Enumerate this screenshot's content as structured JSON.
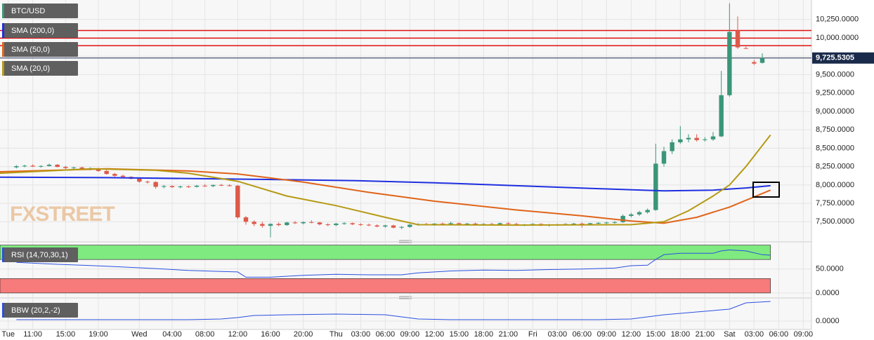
{
  "chart_data": [
    {
      "type": "candlestick",
      "symbol": "BTC/USD",
      "watermark": "FXSTREET",
      "xlim": [
        7,
        106
      ],
      "ylim": [
        7246,
        10495
      ],
      "xticks": [
        {
          "value": 8,
          "label": "Tue"
        },
        {
          "value": 11,
          "label": "11:00"
        },
        {
          "value": 15,
          "label": "15:00"
        },
        {
          "value": 19,
          "label": "19:00"
        },
        {
          "value": 24,
          "label": "Wed"
        },
        {
          "value": 28,
          "label": "04:00"
        },
        {
          "value": 32,
          "label": "08:00"
        },
        {
          "value": 36,
          "label": "12:00"
        },
        {
          "value": 40,
          "label": "16:00"
        },
        {
          "value": 44,
          "label": "20:00"
        },
        {
          "value": 48,
          "label": "Thu"
        },
        {
          "value": 51,
          "label": "03:00"
        },
        {
          "value": 54,
          "label": "06:00"
        },
        {
          "value": 57,
          "label": "09:00"
        },
        {
          "value": 60,
          "label": "12:00"
        },
        {
          "value": 63,
          "label": "15:00"
        },
        {
          "value": 66,
          "label": "18:00"
        },
        {
          "value": 69,
          "label": "21:00"
        },
        {
          "value": 72,
          "label": "Fri"
        },
        {
          "value": 75,
          "label": "03:00"
        },
        {
          "value": 78,
          "label": "06:00"
        },
        {
          "value": 81,
          "label": "09:00"
        },
        {
          "value": 84,
          "label": "12:00"
        },
        {
          "value": 87,
          "label": "15:00"
        },
        {
          "value": 90,
          "label": "18:00"
        },
        {
          "value": 93,
          "label": "21:00"
        },
        {
          "value": 96,
          "label": "Sat"
        },
        {
          "value": 99,
          "label": "03:00"
        },
        {
          "value": 102,
          "label": "06:00"
        },
        {
          "value": 105,
          "label": "09:00"
        }
      ],
      "yticks": [
        {
          "value": 7500,
          "label": "7,500.0000"
        },
        {
          "value": 7750,
          "label": "7,750.0000"
        },
        {
          "value": 8000,
          "label": "8,000.0000"
        },
        {
          "value": 8250,
          "label": "8,250.0000"
        },
        {
          "value": 8500,
          "label": "8,500.0000"
        },
        {
          "value": 8750,
          "label": "8,750.0000"
        },
        {
          "value": 9000,
          "label": "9,000.0000"
        },
        {
          "value": 9250,
          "label": "9,250.0000"
        },
        {
          "value": 9500,
          "label": "9,500.0000"
        },
        {
          "value": 9750,
          "label": "9,750.0000"
        },
        {
          "value": 10000,
          "label": "10,000.0000"
        },
        {
          "value": 10250,
          "label": "10,250.0000"
        }
      ],
      "grid": true,
      "up_color": "#3a9679",
      "down_color": "#dd5a4a",
      "x": [
        9,
        10,
        11,
        12,
        13,
        14,
        15,
        16,
        17,
        18,
        19,
        20,
        21,
        22,
        23,
        24,
        25,
        26,
        27,
        28,
        29,
        30,
        31,
        32,
        33,
        34,
        35,
        36,
        37,
        38,
        39,
        40,
        41,
        42,
        43,
        44,
        45,
        46,
        47,
        48,
        49,
        50,
        51,
        52,
        53,
        54,
        55,
        56,
        57,
        58,
        59,
        60,
        61,
        62,
        63,
        64,
        65,
        66,
        67,
        68,
        69,
        70,
        71,
        72,
        73,
        74,
        75,
        76,
        77,
        78,
        79,
        80,
        81,
        82,
        83,
        84,
        85,
        86,
        87,
        88,
        89,
        90,
        91,
        92,
        93,
        94,
        95,
        96,
        97,
        98,
        99,
        100
      ],
      "open": [
        8240,
        8255,
        8262,
        8250,
        8258,
        8275,
        8245,
        8230,
        8238,
        8222,
        8228,
        8190,
        8150,
        8125,
        8110,
        8085,
        8045,
        8040,
        7975,
        7985,
        7970,
        7980,
        7975,
        7990,
        7985,
        8000,
        7995,
        7990,
        7560,
        7500,
        7470,
        7445,
        7470,
        7455,
        7490,
        7480,
        7495,
        7490,
        7465,
        7455,
        7475,
        7480,
        7465,
        7460,
        7450,
        7435,
        7450,
        7420,
        7430,
        7460,
        7470,
        7460,
        7475,
        7462,
        7480,
        7465,
        7475,
        7460,
        7470,
        7465,
        7480,
        7470,
        7455,
        7465,
        7470,
        7450,
        7460,
        7465,
        7470,
        7475,
        7465,
        7480,
        7485,
        7490,
        7495,
        7580,
        7600,
        7630,
        7660,
        8290,
        8460,
        8580,
        8620,
        8640,
        8610,
        8620,
        8660,
        9220,
        10100,
        9860,
        9670,
        9660
      ],
      "high": [
        8270,
        8275,
        8280,
        8268,
        8290,
        8285,
        8260,
        8250,
        8250,
        8240,
        8235,
        8205,
        8165,
        8140,
        8120,
        8095,
        8060,
        8050,
        8000,
        7995,
        7990,
        7995,
        8000,
        8010,
        8005,
        8015,
        8010,
        8000,
        7580,
        7520,
        7500,
        7480,
        7490,
        7500,
        7510,
        7505,
        7520,
        7500,
        7480,
        7485,
        7495,
        7490,
        7480,
        7475,
        7465,
        7460,
        7460,
        7440,
        7470,
        7480,
        7485,
        7480,
        7490,
        7500,
        7490,
        7485,
        7490,
        7480,
        7485,
        7490,
        7495,
        7485,
        7470,
        7480,
        7480,
        7470,
        7475,
        7480,
        7485,
        7490,
        7485,
        7495,
        7500,
        7510,
        7600,
        7620,
        7650,
        7680,
        8560,
        8520,
        8620,
        8800,
        8690,
        8690,
        8650,
        8720,
        9550,
        10470,
        10290,
        9880,
        9700,
        9790
      ],
      "low": [
        8225,
        8240,
        8245,
        8235,
        8250,
        8240,
        8215,
        8210,
        8215,
        8200,
        8180,
        8140,
        8110,
        8100,
        8075,
        8030,
        8020,
        7950,
        7955,
        7960,
        7955,
        7960,
        7965,
        7975,
        7970,
        7985,
        7980,
        7540,
        7460,
        7440,
        7420,
        7290,
        7440,
        7445,
        7470,
        7465,
        7480,
        7450,
        7440,
        7440,
        7460,
        7455,
        7445,
        7440,
        7425,
        7420,
        7410,
        7400,
        7420,
        7445,
        7450,
        7445,
        7455,
        7455,
        7455,
        7450,
        7455,
        7450,
        7455,
        7455,
        7460,
        7445,
        7440,
        7450,
        7440,
        7435,
        7445,
        7450,
        7455,
        7420,
        7455,
        7465,
        7470,
        7475,
        7485,
        7560,
        7580,
        7610,
        7650,
        8250,
        8420,
        8560,
        8580,
        8590,
        8590,
        8600,
        8650,
        9200,
        9850,
        9850,
        9630,
        9650
      ],
      "close": [
        8255,
        8262,
        8250,
        8258,
        8275,
        8245,
        8230,
        8238,
        8222,
        8228,
        8190,
        8150,
        8125,
        8110,
        8085,
        8045,
        8040,
        7975,
        7985,
        7970,
        7980,
        7975,
        7990,
        7985,
        8000,
        7995,
        7990,
        7560,
        7500,
        7470,
        7445,
        7470,
        7455,
        7490,
        7480,
        7495,
        7490,
        7465,
        7455,
        7475,
        7480,
        7465,
        7460,
        7450,
        7435,
        7450,
        7420,
        7430,
        7460,
        7470,
        7460,
        7475,
        7462,
        7480,
        7465,
        7475,
        7460,
        7470,
        7465,
        7480,
        7470,
        7455,
        7465,
        7470,
        7450,
        7460,
        7465,
        7470,
        7475,
        7465,
        7480,
        7485,
        7490,
        7495,
        7580,
        7600,
        7630,
        7660,
        8290,
        8460,
        8580,
        8620,
        8640,
        8610,
        8620,
        8660,
        9220,
        10080,
        9870,
        9855,
        9650,
        9726
      ],
      "levels": [
        10100,
        9996,
        9893
      ],
      "level_color": "#e01010",
      "last_price": {
        "value": 9725.5305,
        "label": "9,725.5305"
      },
      "series": [
        {
          "name": "SMA (200,0)",
          "color": "#1f2fe0",
          "x": [
            7,
            20,
            36,
            50,
            60,
            70,
            80,
            88,
            94,
            98,
            101
          ],
          "values": [
            8105,
            8100,
            8080,
            8060,
            8030,
            7990,
            7950,
            7920,
            7930,
            7960,
            7990
          ]
        },
        {
          "name": "SMA (50,0)",
          "color": "#e0641a",
          "x": [
            7,
            20,
            30,
            36,
            44,
            52,
            60,
            70,
            78,
            84,
            88,
            92,
            96,
            101
          ],
          "values": [
            8180,
            8220,
            8190,
            8150,
            8040,
            7900,
            7780,
            7660,
            7580,
            7510,
            7480,
            7560,
            7700,
            7930
          ]
        },
        {
          "name": "SMA (20,0)",
          "color": "#b59a14",
          "x": [
            7,
            18,
            26,
            30,
            36,
            42,
            48,
            54,
            58,
            70,
            84,
            88,
            91,
            94,
            96,
            98,
            101
          ],
          "values": [
            8160,
            8220,
            8200,
            8160,
            8050,
            7850,
            7720,
            7560,
            7460,
            7455,
            7460,
            7500,
            7650,
            7850,
            8000,
            8250,
            8680
          ]
        }
      ]
    },
    {
      "type": "line",
      "ylim": [
        -6,
        101
      ],
      "yticks": [
        {
          "value": 0,
          "label": "0.0000"
        },
        {
          "value": 50,
          "label": "50.0000"
        }
      ],
      "bands": [
        {
          "from": 70,
          "to": 100,
          "color": "#7fea7f"
        },
        {
          "from": 0,
          "to": 30,
          "color": "#f77b7b"
        }
      ],
      "series": [
        {
          "name": "RSI (14,70,30,1)",
          "color": "#2a50e0",
          "x": [
            9,
            14,
            20,
            26,
            30,
            34,
            36,
            37,
            40,
            44,
            48,
            52,
            56,
            58,
            62,
            66,
            70,
            74,
            78,
            82,
            84,
            86,
            87,
            88,
            90,
            94,
            95,
            96,
            98,
            100,
            101
          ],
          "values": [
            64,
            60,
            56,
            51,
            47,
            45,
            44,
            33,
            33,
            37,
            39,
            38,
            38,
            42,
            46,
            48,
            47,
            49,
            50,
            52,
            57,
            58,
            70,
            80,
            83,
            83,
            88,
            90,
            88,
            80,
            79
          ]
        }
      ]
    },
    {
      "type": "line",
      "ylim": [
        -0.012,
        0.03
      ],
      "yticks": [
        {
          "value": 0,
          "label": "0.0000"
        }
      ],
      "series": [
        {
          "name": "BBW (20,2,-2)",
          "color": "#2a50e0",
          "x": [
            9,
            20,
            30,
            34,
            36,
            38,
            42,
            48,
            54,
            56,
            58,
            62,
            70,
            80,
            84,
            86,
            88,
            92,
            96,
            98,
            101
          ],
          "values": [
            0.002,
            0.002,
            0.002,
            0.003,
            0.005,
            0.008,
            0.009,
            0.01,
            0.009,
            0.006,
            0.003,
            0.002,
            0.002,
            0.002,
            0.003,
            0.006,
            0.009,
            0.013,
            0.017,
            0.026,
            0.028
          ]
        }
      ]
    }
  ]
}
